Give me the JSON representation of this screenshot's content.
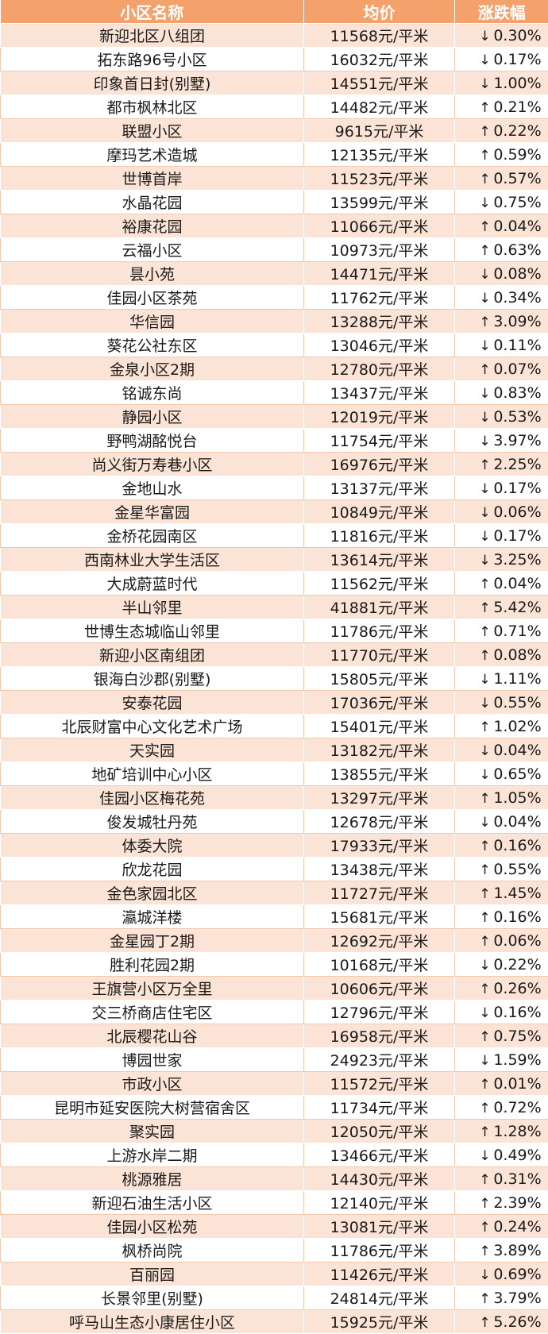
{
  "table": {
    "headers": {
      "name": "小区名称",
      "price": "均价",
      "change": "涨跌幅"
    },
    "rows": [
      {
        "name": "新迎北区八组团",
        "price": "11568元/平米",
        "dir": "down",
        "change": "0.30%"
      },
      {
        "name": "拓东路96号小区",
        "price": "16032元/平米",
        "dir": "down",
        "change": "0.17%"
      },
      {
        "name": "印象首日封(别墅)",
        "price": "14551元/平米",
        "dir": "down",
        "change": "1.00%"
      },
      {
        "name": "都市枫林北区",
        "price": "14482元/平米",
        "dir": "up",
        "change": "0.21%"
      },
      {
        "name": "联盟小区",
        "price": "9615元/平米",
        "dir": "up",
        "change": "0.22%"
      },
      {
        "name": "摩玛艺术造城",
        "price": "12135元/平米",
        "dir": "up",
        "change": "0.59%"
      },
      {
        "name": "世博首岸",
        "price": "11523元/平米",
        "dir": "up",
        "change": "0.57%"
      },
      {
        "name": "水晶花园",
        "price": "13599元/平米",
        "dir": "down",
        "change": "0.75%"
      },
      {
        "name": "裕康花园",
        "price": "11066元/平米",
        "dir": "up",
        "change": "0.04%"
      },
      {
        "name": "云福小区",
        "price": "10973元/平米",
        "dir": "up",
        "change": "0.63%"
      },
      {
        "name": "昙小苑",
        "price": "14471元/平米",
        "dir": "down",
        "change": "0.08%"
      },
      {
        "name": "佳园小区茶苑",
        "price": "11762元/平米",
        "dir": "down",
        "change": "0.34%"
      },
      {
        "name": "华信园",
        "price": "13288元/平米",
        "dir": "up",
        "change": "3.09%"
      },
      {
        "name": "葵花公社东区",
        "price": "13046元/平米",
        "dir": "down",
        "change": "0.11%"
      },
      {
        "name": "金泉小区2期",
        "price": "12780元/平米",
        "dir": "up",
        "change": "0.07%"
      },
      {
        "name": "铭诚东尚",
        "price": "13437元/平米",
        "dir": "down",
        "change": "0.83%"
      },
      {
        "name": "静园小区",
        "price": "12019元/平米",
        "dir": "down",
        "change": "0.53%"
      },
      {
        "name": "野鸭湖酩悦台",
        "price": "11754元/平米",
        "dir": "down",
        "change": "3.97%"
      },
      {
        "name": "尚义街万寿巷小区",
        "price": "16976元/平米",
        "dir": "up",
        "change": "2.25%"
      },
      {
        "name": "金地山水",
        "price": "13137元/平米",
        "dir": "down",
        "change": "0.17%"
      },
      {
        "name": "金星华富园",
        "price": "10849元/平米",
        "dir": "down",
        "change": "0.06%"
      },
      {
        "name": "金桥花园南区",
        "price": "11816元/平米",
        "dir": "down",
        "change": "0.17%"
      },
      {
        "name": "西南林业大学生活区",
        "price": "13614元/平米",
        "dir": "down",
        "change": "3.25%"
      },
      {
        "name": "大成蔚蓝时代",
        "price": "11562元/平米",
        "dir": "up",
        "change": "0.04%"
      },
      {
        "name": "半山邻里",
        "price": "41881元/平米",
        "dir": "up",
        "change": "5.42%"
      },
      {
        "name": "世博生态城临山邻里",
        "price": "11786元/平米",
        "dir": "up",
        "change": "0.71%"
      },
      {
        "name": "新迎小区南组团",
        "price": "11770元/平米",
        "dir": "up",
        "change": "0.08%"
      },
      {
        "name": "银海白沙郡(别墅)",
        "price": "15805元/平米",
        "dir": "down",
        "change": "1.11%"
      },
      {
        "name": "安泰花园",
        "price": "17036元/平米",
        "dir": "down",
        "change": "0.55%"
      },
      {
        "name": "北辰财富中心文化艺术广场",
        "price": "15401元/平米",
        "dir": "up",
        "change": "1.02%"
      },
      {
        "name": "天实园",
        "price": "13182元/平米",
        "dir": "down",
        "change": "0.04%"
      },
      {
        "name": "地矿培训中心小区",
        "price": "13855元/平米",
        "dir": "down",
        "change": "0.65%"
      },
      {
        "name": "佳园小区梅花苑",
        "price": "13297元/平米",
        "dir": "up",
        "change": "1.05%"
      },
      {
        "name": "俊发城牡丹苑",
        "price": "12678元/平米",
        "dir": "down",
        "change": "0.04%"
      },
      {
        "name": "体委大院",
        "price": "17933元/平米",
        "dir": "up",
        "change": "0.16%"
      },
      {
        "name": "欣龙花园",
        "price": "13438元/平米",
        "dir": "up",
        "change": "0.55%"
      },
      {
        "name": "金色家园北区",
        "price": "11727元/平米",
        "dir": "up",
        "change": "1.45%"
      },
      {
        "name": "瀛城洋楼",
        "price": "15681元/平米",
        "dir": "up",
        "change": "0.16%"
      },
      {
        "name": "金星园丁2期",
        "price": "12692元/平米",
        "dir": "up",
        "change": "0.06%"
      },
      {
        "name": "胜利花园2期",
        "price": "10168元/平米",
        "dir": "down",
        "change": "0.22%"
      },
      {
        "name": "王旗营小区万全里",
        "price": "10606元/平米",
        "dir": "up",
        "change": "0.26%"
      },
      {
        "name": "交三桥商店住宅区",
        "price": "12796元/平米",
        "dir": "down",
        "change": "0.16%"
      },
      {
        "name": "北辰樱花山谷",
        "price": "16958元/平米",
        "dir": "up",
        "change": "0.75%"
      },
      {
        "name": "博园世家",
        "price": "24923元/平米",
        "dir": "down",
        "change": "1.59%"
      },
      {
        "name": "市政小区",
        "price": "11572元/平米",
        "dir": "up",
        "change": "0.01%"
      },
      {
        "name": "昆明市延安医院大树营宿舍区",
        "price": "11734元/平米",
        "dir": "up",
        "change": "0.72%"
      },
      {
        "name": "聚实园",
        "price": "12050元/平米",
        "dir": "up",
        "change": "1.28%"
      },
      {
        "name": "上游水岸二期",
        "price": "13466元/平米",
        "dir": "down",
        "change": "0.49%"
      },
      {
        "name": "桃源雅居",
        "price": "14430元/平米",
        "dir": "up",
        "change": "0.31%"
      },
      {
        "name": "新迎石油生活小区",
        "price": "12140元/平米",
        "dir": "up",
        "change": "2.39%"
      },
      {
        "name": "佳园小区松苑",
        "price": "13081元/平米",
        "dir": "up",
        "change": "0.24%"
      },
      {
        "name": "枫桥尚院",
        "price": "11786元/平米",
        "dir": "up",
        "change": "3.89%"
      },
      {
        "name": "百丽园",
        "price": "11426元/平米",
        "dir": "down",
        "change": "0.69%"
      },
      {
        "name": "长景邻里(别墅)",
        "price": "24814元/平米",
        "dir": "up",
        "change": "3.79%"
      },
      {
        "name": "呼马山生态小康居住小区",
        "price": "15925元/平米",
        "dir": "up",
        "change": "5.26%"
      }
    ]
  },
  "icons": {
    "up": "arrow-up-icon",
    "down": "arrow-down-icon"
  },
  "colors": {
    "header_bg": "#f4a16b",
    "odd_row_bg": "#fbe3d5",
    "even_row_bg": "#ffffff",
    "header_text": "#ffffff"
  }
}
